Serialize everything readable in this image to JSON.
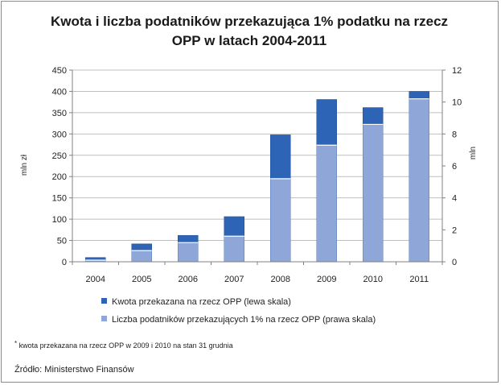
{
  "chart_data": {
    "type": "bar",
    "title_lines": [
      "Kwota i liczba podatników przekazująca 1% podatku na rzecz",
      "OPP w latach 2004-2011"
    ],
    "categories": [
      "2004",
      "2005",
      "2006",
      "2007",
      "2008",
      "2009",
      "2010",
      "2011"
    ],
    "ylabel_left": "mln zł",
    "ylabel_right": "mln",
    "ylim_left": [
      0,
      450
    ],
    "yticks_left": [
      "0",
      "50",
      "100",
      "150",
      "200",
      "250",
      "300",
      "350",
      "400",
      "450"
    ],
    "ylim_right": [
      0,
      12
    ],
    "yticks_right": [
      "0",
      "2",
      "4",
      "6",
      "8",
      "10",
      "12"
    ],
    "series": [
      {
        "name": "Kwota przekazana na rzecz OPP (lewa skala)",
        "axis": "left",
        "color": "#2e64b5",
        "values": [
          10,
          42,
          62,
          106,
          298,
          381,
          362,
          400
        ]
      },
      {
        "name": "Liczba podatników przekazujących 1% na rzecz OPP (prawa skala)",
        "axis": "right",
        "color": "#8ea7d8",
        "values": [
          0.1,
          0.7,
          1.2,
          1.6,
          5.2,
          7.3,
          8.6,
          10.2
        ]
      }
    ],
    "grid": true,
    "legend_position": "bottom",
    "footnote_mark": "*",
    "footnote": " kwota przekazana na rzecz OPP w 2009 i 2010 na stan 31 grudnia",
    "source": "Źródło: Ministerstwo  Finansów"
  }
}
